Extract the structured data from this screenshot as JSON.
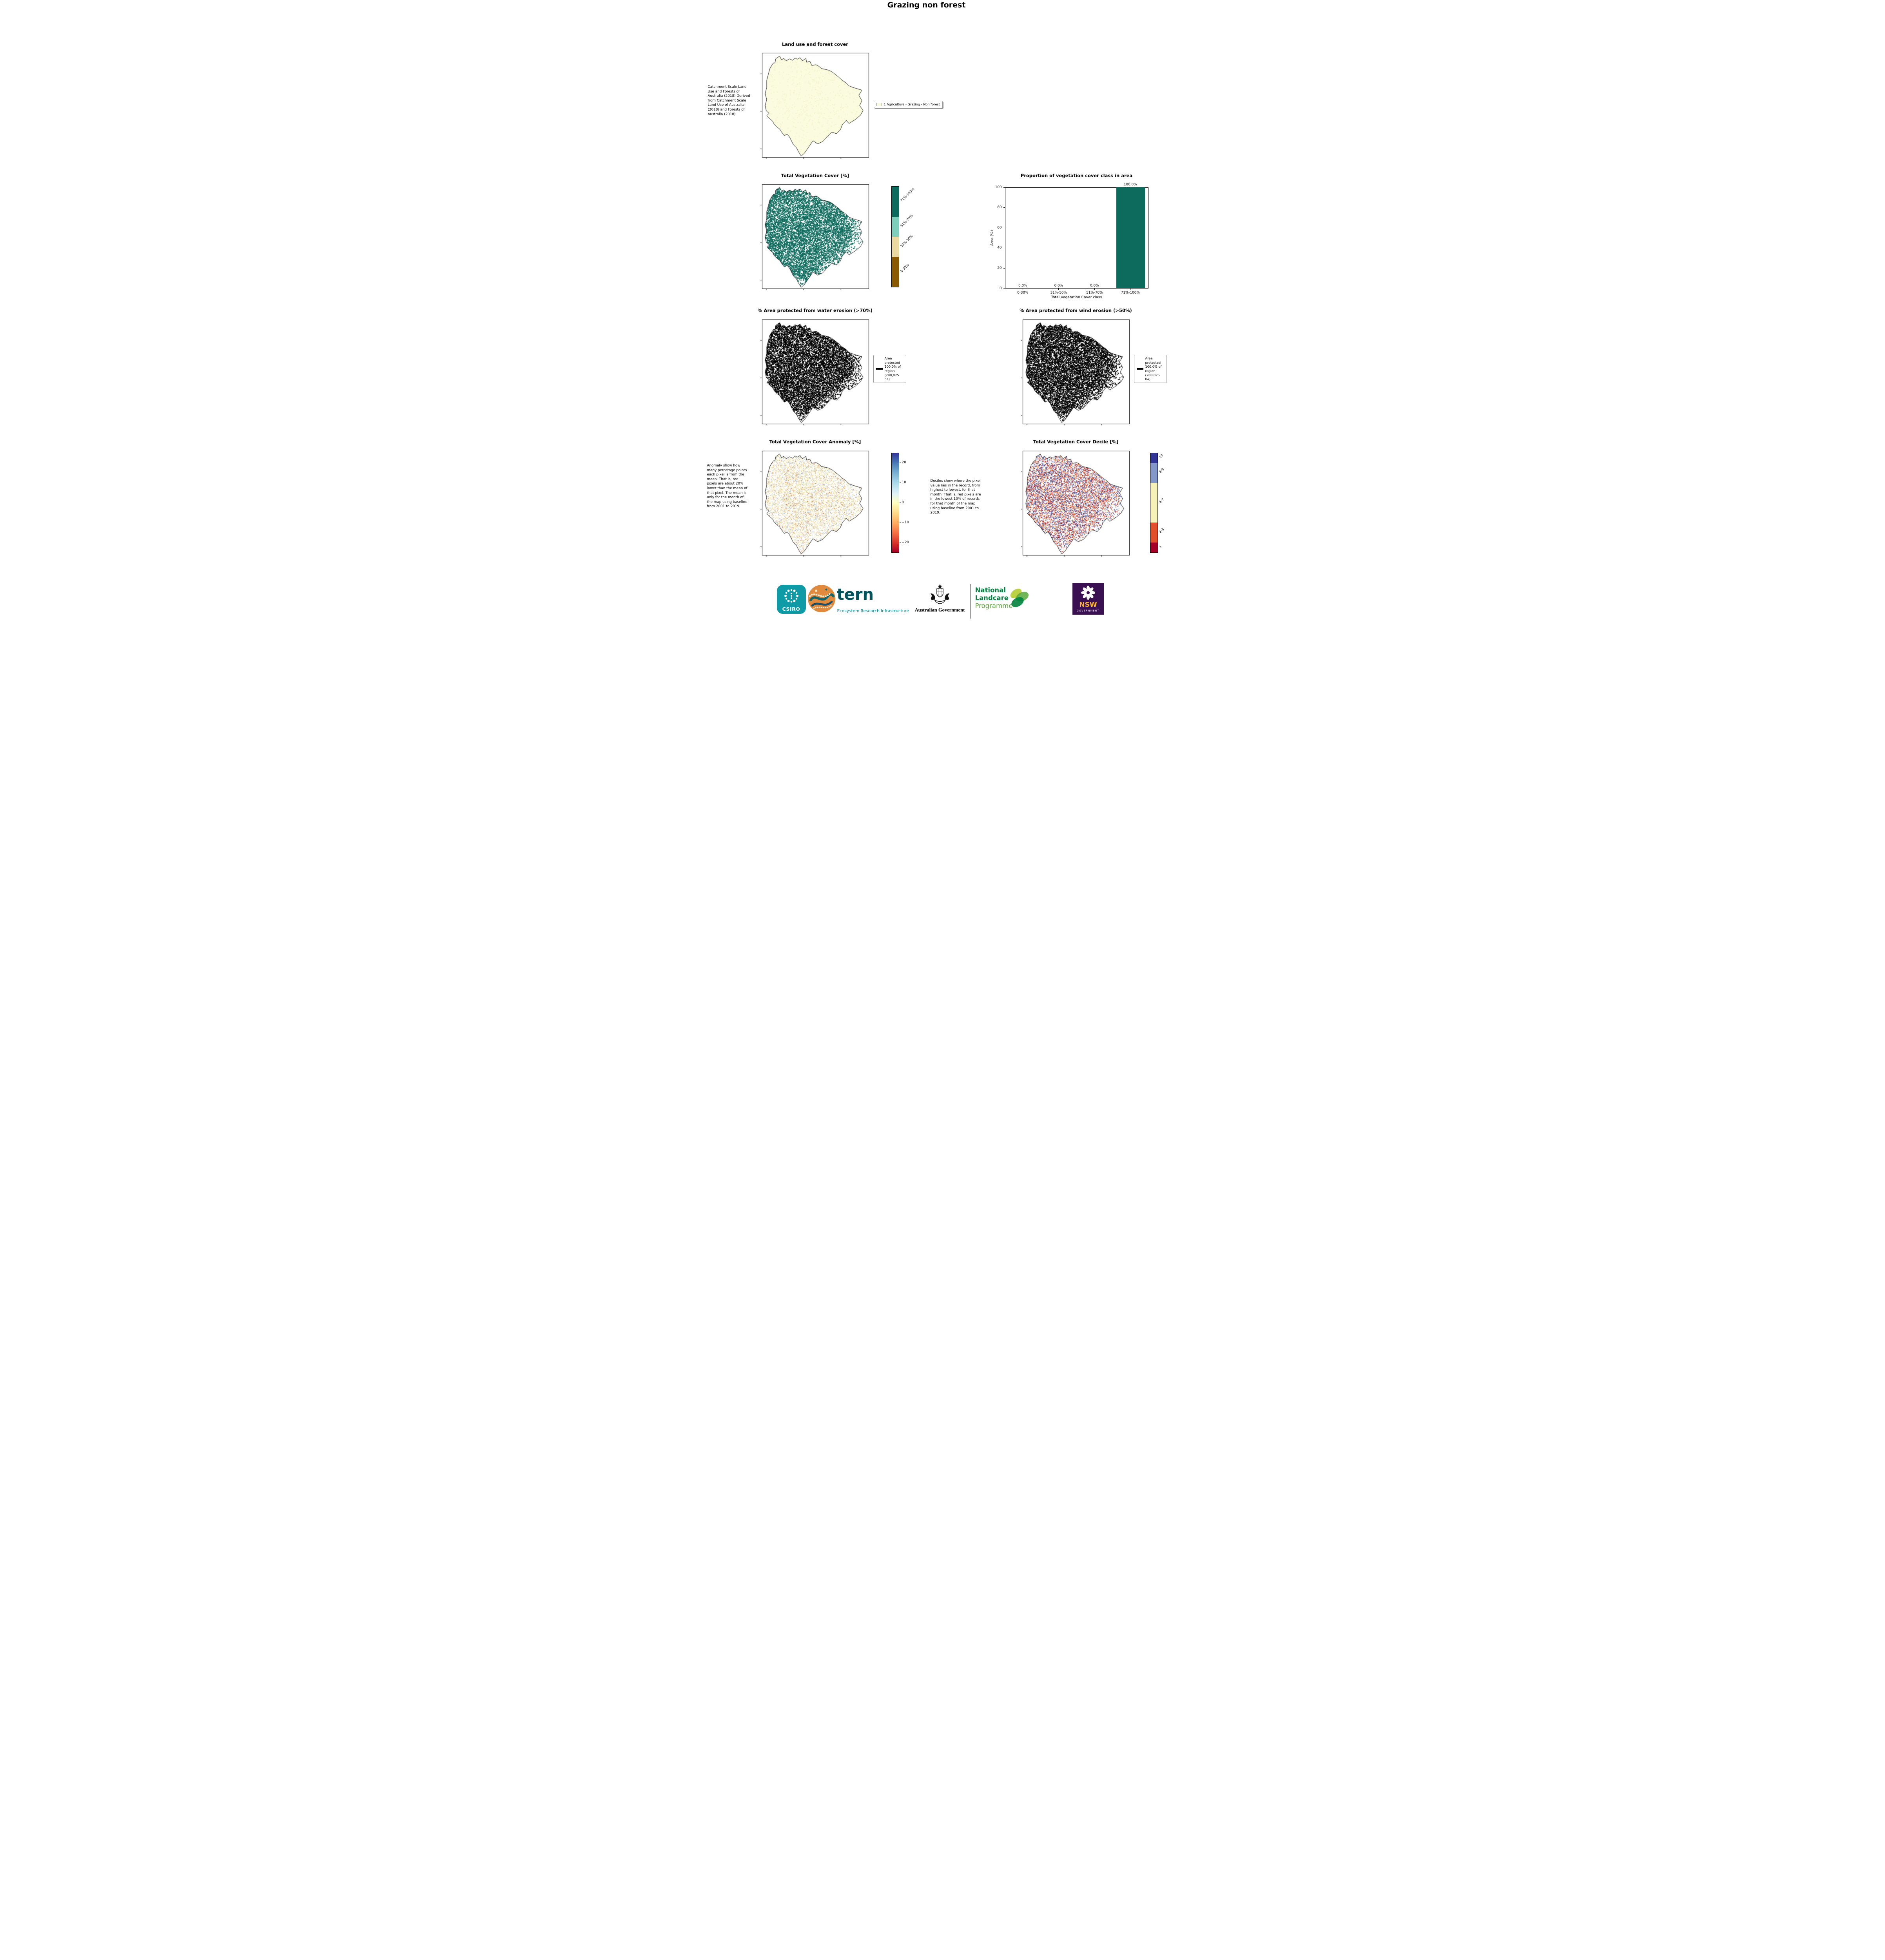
{
  "page": {
    "title": "Grazing non forest"
  },
  "panels": {
    "land_use": {
      "title": "Land use and forest cover",
      "side_text": "Catchment Scale Land Use and Forests of Australia (2018) Derived from Catchment Scale Land Use of Australia (2018) and Forests of Australia (2018)",
      "legend": {
        "label": "1 Agriculture - Grazing - Non forest",
        "swatch_color": "#fbfbdf"
      }
    },
    "veg_cover": {
      "title": "Total Vegetation Cover [%]",
      "colorbar_classes": [
        {
          "label": "71%-100%",
          "color": "#0c6b5d",
          "span": 0.3
        },
        {
          "label": "51%-70%",
          "color": "#7fcdbb",
          "span": 0.2
        },
        {
          "label": "31%-50%",
          "color": "#e9d8a0",
          "span": 0.2
        },
        {
          "label": "0-30%",
          "color": "#8a5a00",
          "span": 0.3
        }
      ]
    },
    "proportion": {
      "title": "Proportion of vegetation cover class in area",
      "chart_data": {
        "type": "bar",
        "categories": [
          "0-30%",
          "31%-50%",
          "51%-70%",
          "71%-100%"
        ],
        "values": [
          0.0,
          0.0,
          0.0,
          100.0
        ],
        "bar_labels": [
          "0.0%",
          "0.0%",
          "0.0%",
          "100.0%"
        ],
        "xlabel": "Total Vegetation Cover class",
        "ylabel": "Area (%)",
        "ylim": [
          0,
          100
        ],
        "yticks": [
          0,
          20,
          40,
          60,
          80,
          100
        ],
        "bar_color": "#0c6b5d",
        "grid": false,
        "legend_position": "none"
      }
    },
    "water_erosion": {
      "title": "% Area protected from water erosion (>70%)",
      "legend_text": "Area protected 100.0% of region (288,025 ha)"
    },
    "wind_erosion": {
      "title": "% Area protected from wind erosion (>50%)",
      "legend_text": "Area protected 100.0% of region (288,025 ha)"
    },
    "anomaly": {
      "title": "Total Vegetation Cover Anomaly [%]",
      "side_text": "Anomaly show how many percetage points each pixel is from the mean. That is, red pixels are about 20% lower than the mean of that pixel. The mean is only for the month of the map using baseline from 2001 to 2019.",
      "colorbar_ticks": [
        "20",
        "10",
        "0",
        "−10",
        "−20"
      ]
    },
    "decile": {
      "title": "Total Vegetation Cover Decile [%]",
      "side_text": "Deciles show where the pixel value lies in the record, from highest to lowest, for that month. That is, red pixels are in the lowest 10% of records for that month of the map using baseline from 2001 to 2019.",
      "colorbar_classes": [
        {
          "label": "10",
          "color": "#313695",
          "span": 0.1
        },
        {
          "label": "8-9",
          "color": "#8497c9",
          "span": 0.2
        },
        {
          "label": "4-7",
          "color": "#f6f1b6",
          "span": 0.4
        },
        {
          "label": "2-3",
          "color": "#e1502b",
          "span": 0.2
        },
        {
          "label": "1",
          "color": "#a50026",
          "span": 0.1
        }
      ]
    }
  },
  "footer": {
    "csiro_label": "CSIRO",
    "tern_name": "tern",
    "tern_subtitle": "Ecosystem Research Infrastructure",
    "aus_gov_label": "Australian Government",
    "landcare_line1": "National",
    "landcare_line2": "Landcare",
    "landcare_line3": "Programme",
    "nsw_name": "NSW",
    "nsw_subtitle": "GOVERNMENT",
    "colors": {
      "csiro_teal": "#0f9ba5",
      "tern_teal": "#00535c",
      "tern_sub_teal": "#00828f",
      "landcare_green": "#00843d",
      "landcare_light_green": "#58a333",
      "nsw_purple": "#3b1053",
      "nsw_yellow": "#ffb81c"
    }
  }
}
